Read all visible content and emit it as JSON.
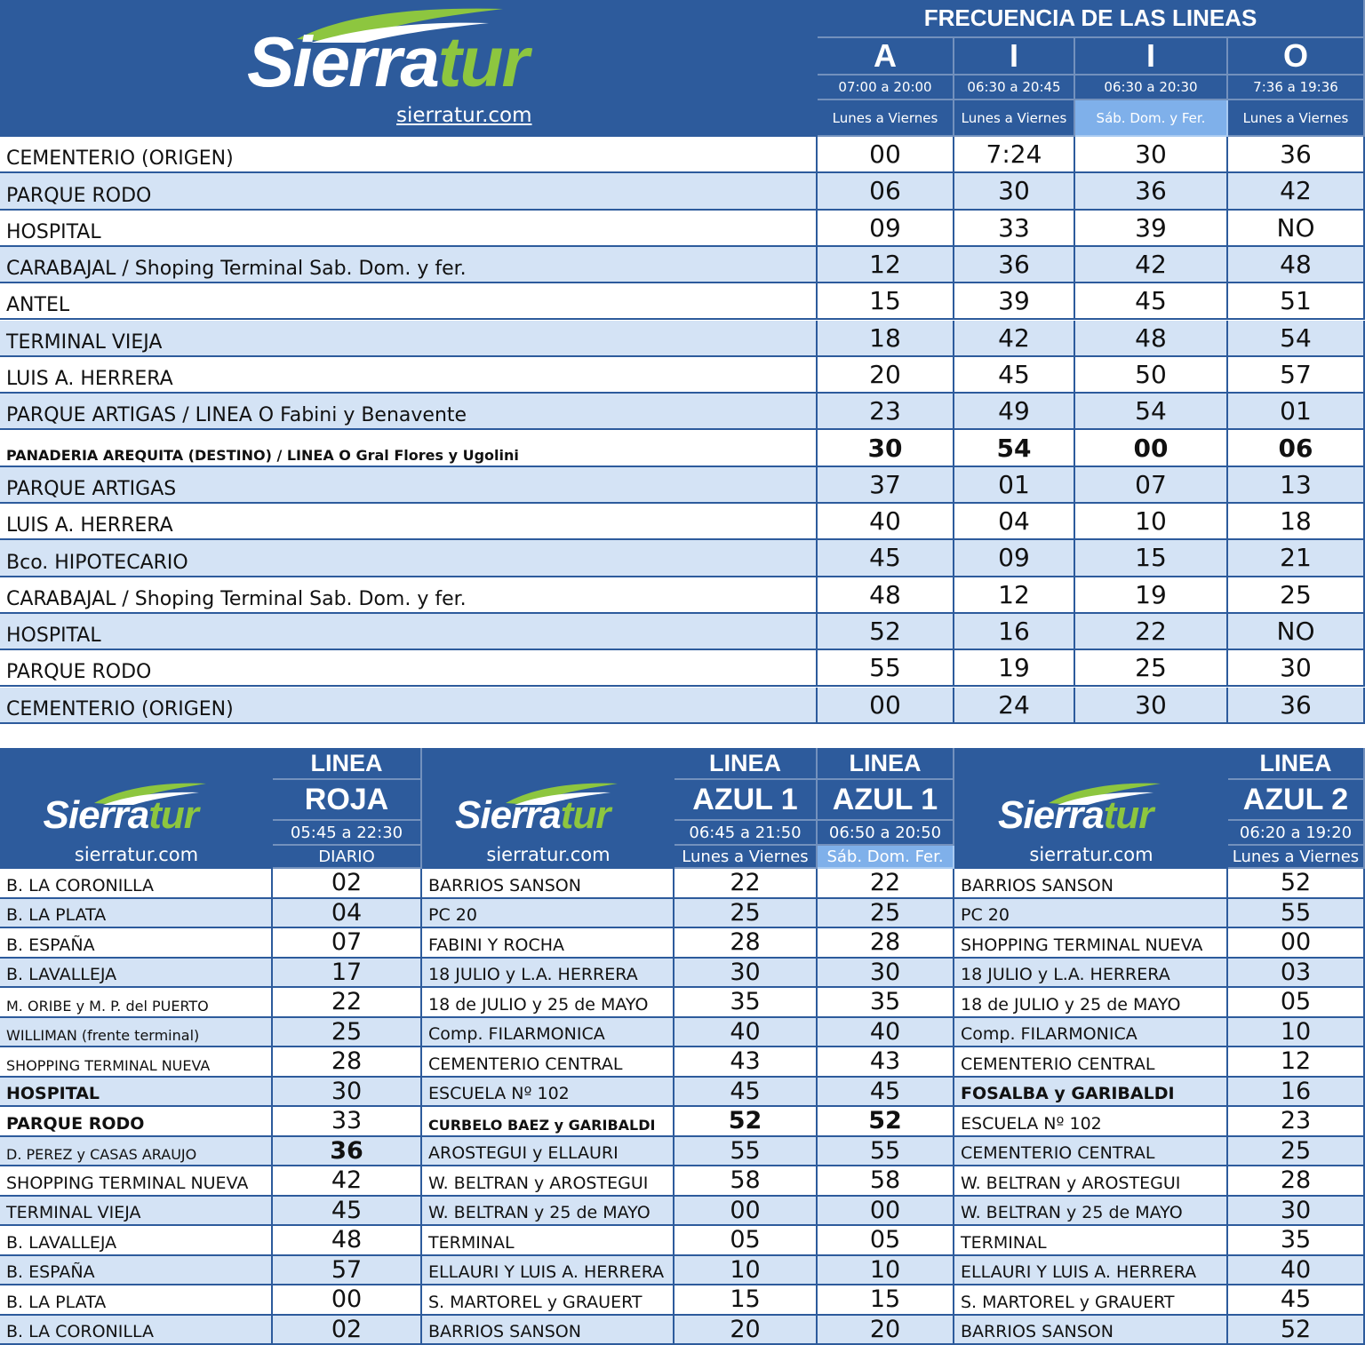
{
  "brand": {
    "name_part1": "Sierra",
    "name_part2": "tur",
    "url": "sierratur.com"
  },
  "top": {
    "title": "FRECUENCIA DE LAS LINEAS",
    "lines": [
      {
        "letter": "A",
        "hours": "07:00 a 20:00",
        "days": "Lunes a Viernes"
      },
      {
        "letter": "I",
        "hours": "06:30 a 20:45",
        "days": "Lunes a Viernes"
      },
      {
        "letter": "I",
        "hours": "06:30 a 20:30",
        "days": "Sáb. Dom. y Fer."
      },
      {
        "letter": "O",
        "hours": "7:36 a 19:36",
        "days": "Lunes a Viernes"
      }
    ],
    "rows": [
      {
        "stop": "CEMENTERIO (ORIGEN)",
        "a": "00",
        "i1": "7:24",
        "i2": "30",
        "o": "36"
      },
      {
        "stop": "PARQUE RODO",
        "a": "06",
        "i1": "30",
        "i2": "36",
        "o": "42"
      },
      {
        "stop": "HOSPITAL",
        "a": "09",
        "i1": "33",
        "i2": "39",
        "o": "NO"
      },
      {
        "stop": "CARABAJAL / Shoping Terminal Sab. Dom. y fer.",
        "a": "12",
        "i1": "36",
        "i2": "42",
        "o": "48"
      },
      {
        "stop": "ANTEL",
        "a": "15",
        "i1": "39",
        "i2": "45",
        "o": "51"
      },
      {
        "stop": "TERMINAL VIEJA",
        "a": "18",
        "i1": "42",
        "i2": "48",
        "o": "54"
      },
      {
        "stop": "LUIS A. HERRERA",
        "a": "20",
        "i1": "45",
        "i2": "50",
        "o": "57"
      },
      {
        "stop": "PARQUE ARTIGAS / LINEA O Fabini y Benavente",
        "a": "23",
        "i1": "49",
        "i2": "54",
        "o": "01"
      },
      {
        "stop": "PANADERIA AREQUITA (DESTINO) / LINEA O Gral Flores y Ugolini",
        "a": "30",
        "i1": "54",
        "i2": "00",
        "o": "06"
      },
      {
        "stop": "PARQUE ARTIGAS",
        "a": "37",
        "i1": "01",
        "i2": "07",
        "o": "13"
      },
      {
        "stop": "LUIS A. HERRERA",
        "a": "40",
        "i1": "04",
        "i2": "10",
        "o": "18"
      },
      {
        "stop": "Bco. HIPOTECARIO",
        "a": "45",
        "i1": "09",
        "i2": "15",
        "o": "21"
      },
      {
        "stop": "CARABAJAL / Shoping Terminal Sab. Dom. y fer.",
        "a": "48",
        "i1": "12",
        "i2": "19",
        "o": "25"
      },
      {
        "stop": "HOSPITAL",
        "a": "52",
        "i1": "16",
        "i2": "22",
        "o": "NO"
      },
      {
        "stop": "PARQUE RODO",
        "a": "55",
        "i1": "19",
        "i2": "25",
        "o": "30"
      },
      {
        "stop": "CEMENTERIO (ORIGEN)",
        "a": "00",
        "i1": "24",
        "i2": "30",
        "o": "36"
      }
    ]
  },
  "roja": {
    "line_word": "LINEA",
    "name": "ROJA",
    "hours": "05:45 a 22:30",
    "days": "DIARIO",
    "rows": [
      {
        "stop": "B. LA CORONILLA",
        "t": "02"
      },
      {
        "stop": "B. LA PLATA",
        "t": "04"
      },
      {
        "stop": "B. ESPAÑA",
        "t": "07"
      },
      {
        "stop": "B. LAVALLEJA",
        "t": "17"
      },
      {
        "stop": "M. ORIBE y M. P. del PUERTO",
        "t": "22"
      },
      {
        "stop": "WILLIMAN (frente terminal)",
        "t": "25"
      },
      {
        "stop": "SHOPPING TERMINAL NUEVA",
        "t": "28"
      },
      {
        "stop": "HOSPITAL",
        "t": "30"
      },
      {
        "stop": "PARQUE RODO",
        "t": "33"
      },
      {
        "stop": "D. PEREZ y CASAS ARAUJO",
        "t": "36"
      },
      {
        "stop": "SHOPPING TERMINAL NUEVA",
        "t": "42"
      },
      {
        "stop": "TERMINAL VIEJA",
        "t": "45"
      },
      {
        "stop": "B. LAVALLEJA",
        "t": "48"
      },
      {
        "stop": "B. ESPAÑA",
        "t": "57"
      },
      {
        "stop": "B. LA PLATA",
        "t": "00"
      },
      {
        "stop": "B. LA CORONILLA",
        "t": "02"
      }
    ]
  },
  "azul1": {
    "line_word": "LINEA",
    "name": "AZUL 1",
    "hours_a": "06:45 a 21:50",
    "days_a": "Lunes a Viernes",
    "hours_b": "06:50 a 20:50",
    "days_b": "Sáb. Dom. Fer.",
    "rows": [
      {
        "stop": "BARRIOS SANSON",
        "a": "22",
        "b": "22"
      },
      {
        "stop": "PC 20",
        "a": "25",
        "b": "25"
      },
      {
        "stop": "FABINI Y ROCHA",
        "a": "28",
        "b": "28"
      },
      {
        "stop": "18 JULIO y L.A. HERRERA",
        "a": "30",
        "b": "30"
      },
      {
        "stop": "18 de JULIO y 25 de MAYO",
        "a": "35",
        "b": "35"
      },
      {
        "stop": "Comp. FILARMONICA",
        "a": "40",
        "b": "40"
      },
      {
        "stop": "CEMENTERIO CENTRAL",
        "a": "43",
        "b": "43"
      },
      {
        "stop": "ESCUELA Nº 102",
        "a": "45",
        "b": "45"
      },
      {
        "stop": "CURBELO BAEZ y GARIBALDI",
        "a": "52",
        "b": "52"
      },
      {
        "stop": "AROSTEGUI y ELLAURI",
        "a": "55",
        "b": "55"
      },
      {
        "stop": "W. BELTRAN y AROSTEGUI",
        "a": "58",
        "b": "58"
      },
      {
        "stop": "W. BELTRAN y 25 de MAYO",
        "a": "00",
        "b": "00"
      },
      {
        "stop": "TERMINAL",
        "a": "05",
        "b": "05"
      },
      {
        "stop": "ELLAURI Y LUIS A. HERRERA",
        "a": "10",
        "b": "10"
      },
      {
        "stop": "S. MARTOREL y GRAUERT",
        "a": "15",
        "b": "15"
      },
      {
        "stop": "BARRIOS SANSON",
        "a": "20",
        "b": "20"
      }
    ]
  },
  "azul2": {
    "line_word": "LINEA",
    "name": "AZUL 2",
    "hours": "06:20 a 19:20",
    "days": "Lunes a Viernes",
    "rows": [
      {
        "stop": "BARRIOS SANSON",
        "t": "52"
      },
      {
        "stop": "PC 20",
        "t": "55"
      },
      {
        "stop": "SHOPPING TERMINAL NUEVA",
        "t": "00"
      },
      {
        "stop": "18 JULIO y L.A. HERRERA",
        "t": "03"
      },
      {
        "stop": "18 de JULIO y 25 de MAYO",
        "t": "05"
      },
      {
        "stop": "Comp. FILARMONICA",
        "t": "10"
      },
      {
        "stop": "CEMENTERIO CENTRAL",
        "t": "12"
      },
      {
        "stop": "FOSALBA y GARIBALDI",
        "t": "16"
      },
      {
        "stop": "ESCUELA Nº 102",
        "t": "23"
      },
      {
        "stop": "CEMENTERIO CENTRAL",
        "t": "25"
      },
      {
        "stop": "W. BELTRAN y AROSTEGUI",
        "t": "28"
      },
      {
        "stop": "W. BELTRAN y 25 de MAYO",
        "t": "30"
      },
      {
        "stop": "TERMINAL",
        "t": "35"
      },
      {
        "stop": "ELLAURI Y LUIS A. HERRERA",
        "t": "40"
      },
      {
        "stop": "S. MARTOREL y GRAUERT",
        "t": "45"
      },
      {
        "stop": "BARRIOS SANSON",
        "t": "52"
      }
    ]
  },
  "colors": {
    "header": "#2d5b9c",
    "row_alt": "#d4e3f5",
    "highlight": "#7fb0ea",
    "logo_green": "#8dc63f"
  }
}
